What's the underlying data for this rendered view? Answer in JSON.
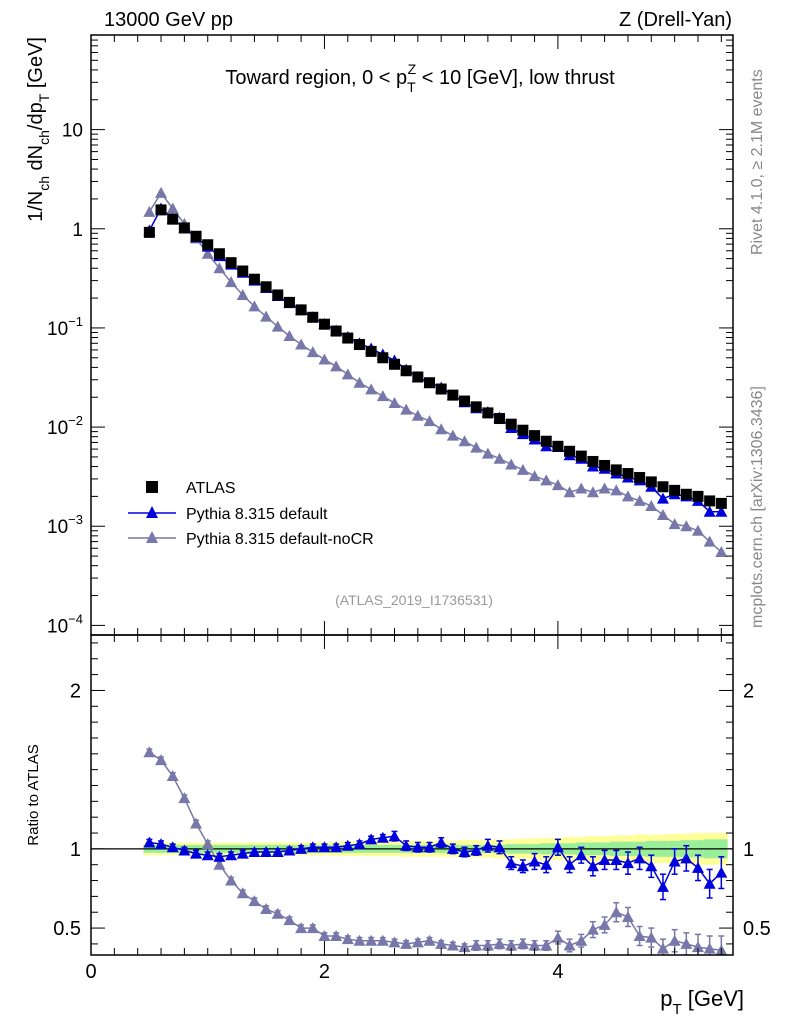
{
  "header": {
    "left_label": "13000 GeV pp",
    "right_label": "Z (Drell-Yan)"
  },
  "side_labels": {
    "rivet": "Rivet 4.1.0, ≥ 2.1M events",
    "mcplots": "mcplots.cern.ch [arXiv:1306.3436]"
  },
  "chart_data": [
    {
      "type": "scatter",
      "panel": "main",
      "title_parts": {
        "before": "Toward region, 0 < p",
        "sub": "T",
        "sup": "Z",
        "after": " < 10 [GeV], low thrust"
      },
      "ylabel_parts": {
        "p1": "1/N",
        "s1": "ch",
        "p2": " dN",
        "s2": "ch",
        "p3": "/dp",
        "s3": "T",
        "p4": " [GeV]"
      },
      "yscale": "log",
      "ylim": [
        8e-05,
        90
      ],
      "xlim": [
        0,
        5.5
      ],
      "yticks": [
        {
          "value": 0.0001,
          "base": "10",
          "exp": "−4"
        },
        {
          "value": 0.001,
          "base": "10",
          "exp": "−3"
        },
        {
          "value": 0.01,
          "base": "10",
          "exp": "−2"
        },
        {
          "value": 0.1,
          "base": "10",
          "exp": "−1"
        },
        {
          "value": 1,
          "base": "1",
          "exp": ""
        },
        {
          "value": 10,
          "base": "10",
          "exp": ""
        }
      ],
      "legend": [
        {
          "label": "ATLAS",
          "marker": "square",
          "color": "#000000"
        },
        {
          "label": "Pythia 8.315 default",
          "marker": "triangle",
          "color": "#0000dd"
        },
        {
          "label": "Pythia 8.315 default-noCR",
          "marker": "triangle",
          "color": "#7777aa"
        }
      ],
      "watermark": "(ATLAS_2019_I1736531)",
      "x": [
        0.5,
        0.6,
        0.7,
        0.8,
        0.9,
        1.0,
        1.1,
        1.2,
        1.3,
        1.4,
        1.5,
        1.6,
        1.7,
        1.8,
        1.9,
        2.0,
        2.1,
        2.2,
        2.3,
        2.4,
        2.5,
        2.6,
        2.7,
        2.8,
        2.9,
        3.0,
        3.1,
        3.2,
        3.3,
        3.4,
        3.5,
        3.6,
        3.7,
        3.8,
        3.9,
        4.0,
        4.1,
        4.2,
        4.3,
        4.4,
        4.5,
        4.6,
        4.7,
        4.8,
        4.9,
        5.0,
        5.1,
        5.2,
        5.3,
        5.4
      ],
      "series": [
        {
          "name": "ATLAS",
          "values": [
            0.92,
            1.55,
            1.25,
            1.02,
            0.84,
            0.69,
            0.56,
            0.455,
            0.375,
            0.31,
            0.26,
            0.215,
            0.181,
            0.152,
            0.128,
            0.109,
            0.093,
            0.079,
            0.068,
            0.058,
            0.05,
            0.043,
            0.037,
            0.032,
            0.028,
            0.0242,
            0.021,
            0.0183,
            0.016,
            0.0139,
            0.0122,
            0.0107,
            0.0093,
            0.0082,
            0.0072,
            0.0064,
            0.0057,
            0.0051,
            0.0045,
            0.0041,
            0.0037,
            0.0034,
            0.0031,
            0.0028,
            0.0025,
            0.0023,
            0.0021,
            0.002,
            0.0018,
            0.0017
          ]
        },
        {
          "name": "Pythia 8.315 default",
          "values": [
            0.96,
            1.6,
            1.26,
            1.01,
            0.82,
            0.66,
            0.53,
            0.435,
            0.36,
            0.3,
            0.253,
            0.21,
            0.178,
            0.152,
            0.128,
            0.11,
            0.094,
            0.081,
            0.07,
            0.062,
            0.054,
            0.047,
            0.038,
            0.032,
            0.028,
            0.025,
            0.021,
            0.0178,
            0.0155,
            0.0142,
            0.0125,
            0.0098,
            0.0085,
            0.0075,
            0.0064,
            0.0063,
            0.0052,
            0.0048,
            0.004,
            0.0038,
            0.0034,
            0.0031,
            0.0029,
            0.0025,
            0.0019,
            0.0021,
            0.002,
            0.0018,
            0.0014,
            0.0014
          ]
        },
        {
          "name": "Pythia 8.315 default-noCR",
          "values": [
            1.48,
            2.3,
            1.6,
            1.12,
            0.8,
            0.56,
            0.4,
            0.29,
            0.215,
            0.165,
            0.13,
            0.103,
            0.083,
            0.068,
            0.057,
            0.048,
            0.041,
            0.034,
            0.028,
            0.024,
            0.0205,
            0.0175,
            0.015,
            0.013,
            0.0115,
            0.0095,
            0.0082,
            0.0072,
            0.0062,
            0.0054,
            0.0048,
            0.0042,
            0.0037,
            0.0032,
            0.0029,
            0.0026,
            0.0022,
            0.0024,
            0.0022,
            0.0024,
            0.0023,
            0.002,
            0.0018,
            0.0016,
            0.0013,
            0.00105,
            0.001,
            0.0009,
            0.0007,
            0.00055
          ]
        }
      ]
    },
    {
      "type": "scatter",
      "panel": "ratio",
      "ylabel": "Ratio to ATLAS",
      "xlabel_parts": {
        "p1": "p",
        "s1": "T",
        "p2": " [GeV]"
      },
      "ylim": [
        0.33,
        2.35
      ],
      "xlim": [
        0,
        5.5
      ],
      "yticks": [
        0.5,
        1,
        2
      ],
      "ytick_labels": [
        "0.5",
        "1",
        "2"
      ],
      "xticks": [
        0,
        2,
        4
      ],
      "xtick_labels": [
        "0",
        "2",
        "4"
      ],
      "band_inner": [
        0.025,
        0.025,
        0.025,
        0.025,
        0.025,
        0.025,
        0.025,
        0.025,
        0.025,
        0.025,
        0.025,
        0.025,
        0.025,
        0.025,
        0.025,
        0.025,
        0.025,
        0.025,
        0.025,
        0.025,
        0.025,
        0.025,
        0.025,
        0.025,
        0.025,
        0.025,
        0.025,
        0.025,
        0.025,
        0.025,
        0.025,
        0.03,
        0.03,
        0.03,
        0.035,
        0.035,
        0.035,
        0.04,
        0.04,
        0.04,
        0.045,
        0.045,
        0.045,
        0.05,
        0.05,
        0.05,
        0.055,
        0.055,
        0.06,
        0.06
      ],
      "band_outer": [
        0.04,
        0.04,
        0.04,
        0.04,
        0.04,
        0.04,
        0.04,
        0.04,
        0.04,
        0.04,
        0.04,
        0.04,
        0.04,
        0.04,
        0.04,
        0.04,
        0.045,
        0.045,
        0.045,
        0.045,
        0.045,
        0.045,
        0.05,
        0.05,
        0.05,
        0.05,
        0.05,
        0.055,
        0.055,
        0.055,
        0.06,
        0.06,
        0.065,
        0.065,
        0.07,
        0.07,
        0.075,
        0.075,
        0.08,
        0.08,
        0.085,
        0.085,
        0.09,
        0.09,
        0.09,
        0.095,
        0.095,
        0.1,
        0.1,
        0.1
      ],
      "series": [
        {
          "name": "Pythia 8.315 default",
          "values": [
            1.04,
            1.03,
            1.01,
            0.99,
            0.97,
            0.96,
            0.95,
            0.96,
            0.97,
            0.98,
            0.98,
            0.98,
            0.99,
            1.0,
            1.01,
            1.01,
            1.01,
            1.02,
            1.03,
            1.06,
            1.07,
            1.08,
            1.02,
            1.01,
            1.01,
            1.04,
            1.0,
            0.98,
            0.99,
            1.02,
            1.01,
            0.91,
            0.89,
            0.92,
            0.9,
            1.01,
            0.9,
            0.96,
            0.89,
            0.93,
            0.93,
            0.91,
            0.94,
            0.89,
            0.76,
            0.92,
            0.94,
            0.88,
            0.78,
            0.85
          ],
          "errors": [
            0.02,
            0.02,
            0.02,
            0.02,
            0.02,
            0.02,
            0.02,
            0.02,
            0.02,
            0.02,
            0.02,
            0.02,
            0.02,
            0.02,
            0.02,
            0.02,
            0.02,
            0.02,
            0.02,
            0.02,
            0.02,
            0.03,
            0.03,
            0.03,
            0.03,
            0.03,
            0.03,
            0.03,
            0.03,
            0.04,
            0.04,
            0.04,
            0.04,
            0.05,
            0.05,
            0.05,
            0.05,
            0.05,
            0.06,
            0.06,
            0.06,
            0.07,
            0.07,
            0.07,
            0.08,
            0.08,
            0.08,
            0.08,
            0.09,
            0.1
          ]
        },
        {
          "name": "Pythia 8.315 default-noCR",
          "values": [
            1.61,
            1.56,
            1.46,
            1.32,
            1.16,
            1.03,
            0.9,
            0.8,
            0.72,
            0.67,
            0.62,
            0.59,
            0.55,
            0.5,
            0.5,
            0.45,
            0.45,
            0.43,
            0.42,
            0.42,
            0.42,
            0.41,
            0.4,
            0.41,
            0.42,
            0.4,
            0.39,
            0.38,
            0.39,
            0.39,
            0.4,
            0.39,
            0.4,
            0.39,
            0.39,
            0.44,
            0.39,
            0.42,
            0.49,
            0.52,
            0.6,
            0.57,
            0.45,
            0.44,
            0.37,
            0.42,
            0.4,
            0.38,
            0.37,
            0.36
          ],
          "errors": [
            0.02,
            0.02,
            0.02,
            0.02,
            0.02,
            0.02,
            0.02,
            0.02,
            0.02,
            0.02,
            0.02,
            0.02,
            0.02,
            0.02,
            0.02,
            0.02,
            0.02,
            0.02,
            0.02,
            0.02,
            0.02,
            0.02,
            0.02,
            0.02,
            0.02,
            0.02,
            0.02,
            0.02,
            0.03,
            0.03,
            0.03,
            0.03,
            0.03,
            0.03,
            0.03,
            0.04,
            0.04,
            0.04,
            0.05,
            0.05,
            0.06,
            0.06,
            0.06,
            0.06,
            0.06,
            0.07,
            0.07,
            0.08,
            0.08,
            0.09
          ]
        }
      ]
    }
  ]
}
